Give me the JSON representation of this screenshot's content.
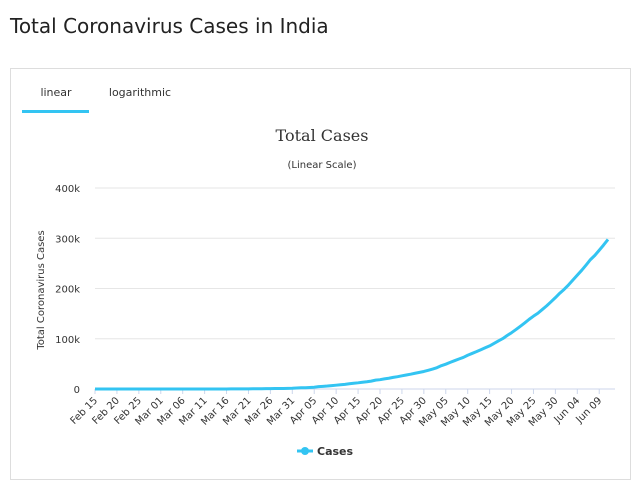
{
  "header": {
    "title": "Total Coronavirus Cases in India"
  },
  "tabs": [
    "linear",
    "logarithmic"
  ],
  "chart_data": {
    "type": "line",
    "title": "Total Cases",
    "subtitle": "(Linear Scale)",
    "y_label": "Total Coronavirus Cases",
    "categories": [
      "Feb 15",
      null,
      null,
      null,
      null,
      "Feb 20",
      null,
      null,
      null,
      null,
      "Feb 25",
      null,
      null,
      null,
      null,
      "Mar 01",
      null,
      null,
      null,
      null,
      "Mar 06",
      null,
      null,
      null,
      null,
      "Mar 11",
      null,
      null,
      null,
      null,
      "Mar 16",
      null,
      null,
      null,
      null,
      "Mar 21",
      null,
      null,
      null,
      null,
      "Mar 26",
      null,
      null,
      null,
      null,
      "Mar 31",
      null,
      null,
      null,
      null,
      "Apr 05",
      null,
      null,
      null,
      null,
      "Apr 10",
      null,
      null,
      null,
      null,
      "Apr 15",
      null,
      null,
      null,
      null,
      "Apr 20",
      null,
      null,
      null,
      null,
      "Apr 25",
      null,
      null,
      null,
      null,
      "Apr 30",
      null,
      null,
      null,
      null,
      "May 05",
      null,
      null,
      null,
      null,
      "May 10",
      null,
      null,
      null,
      null,
      "May 15",
      null,
      null,
      null,
      null,
      "May 20",
      null,
      null,
      null,
      null,
      "May 25",
      null,
      null,
      null,
      null,
      "May 30",
      null,
      null,
      null,
      null,
      "Jun 04",
      null,
      null,
      null,
      null,
      "Jun 09",
      null,
      null
    ],
    "series": [
      {
        "name": "Cases",
        "color": "#33c4f2",
        "values": [
          3,
          3,
          3,
          3,
          3,
          3,
          3,
          3,
          3,
          3,
          3,
          3,
          3,
          3,
          3,
          3,
          5,
          5,
          28,
          30,
          31,
          34,
          39,
          43,
          56,
          62,
          73,
          82,
          102,
          113,
          119,
          142,
          156,
          194,
          244,
          330,
          396,
          499,
          536,
          657,
          727,
          887,
          987,
          1024,
          1251,
          1397,
          1998,
          2543,
          2567,
          3082,
          3588,
          4778,
          5311,
          5916,
          6725,
          7598,
          8446,
          9205,
          10453,
          11487,
          12322,
          13430,
          14352,
          15722,
          17615,
          18539,
          20080,
          21370,
          23077,
          24530,
          26283,
          27890,
          29451,
          31324,
          33062,
          34863,
          37257,
          39699,
          42505,
          46437,
          49400,
          52987,
          56351,
          59695,
          62808,
          67161,
          70768,
          74292,
          78055,
          81997,
          85784,
          90648,
          95698,
          100328,
          106475,
          112028,
          118226,
          124794,
          131423,
          138536,
          144950,
          150793,
          158086,
          165386,
          173491,
          181827,
          190609,
          198370,
          207191,
          216824,
          226713,
          236184,
          246622,
          257486,
          265928,
          276146,
          286579,
          297535
        ]
      }
    ],
    "ylim": [
      0,
      400000
    ],
    "yticks": [
      0,
      {
        "value": 100000,
        "label": "100k"
      },
      {
        "value": 200000,
        "label": "200k"
      },
      {
        "value": 300000,
        "label": "300k"
      },
      {
        "value": 400000,
        "label": "400k"
      }
    ],
    "grid": true
  }
}
